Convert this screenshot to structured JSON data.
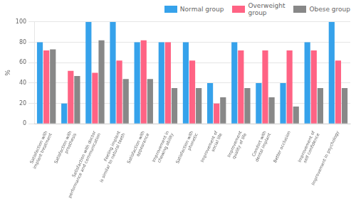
{
  "chart_data": {
    "type": "bar",
    "categories": [
      "Satisfaction with\nimplant treatment",
      "Satisfaction with\nprosthesis",
      "Satisfaction with doctor\nperformance and communication",
      "Feeling implant\nis similar to natural teeth",
      "Satisfaction with\nappearance",
      "Improvement in\nchewing ability",
      "Satisfaction with\nphonetic",
      "Improvement of\nsocial life",
      "Improvement\nquality of life",
      "Comfort with\ndental implant",
      "Better occlusion",
      "Improvement of\nself confidence",
      "Improvement in psychology"
    ],
    "series": [
      {
        "name": "Normal group",
        "color": "#36a2eb",
        "values": [
          80,
          20,
          100,
          100,
          80,
          80,
          80,
          40,
          80,
          40,
          40,
          80,
          100
        ]
      },
      {
        "name": "Overweight\ngroup",
        "color": "#ff6384",
        "values": [
          72,
          52,
          50,
          62,
          82,
          80,
          62,
          20,
          72,
          72,
          72,
          72,
          62
        ]
      },
      {
        "name": "Obese group",
        "color": "#888888",
        "values": [
          73,
          47,
          82,
          44,
          44,
          35,
          35,
          26,
          35,
          26,
          17,
          35,
          35
        ]
      }
    ],
    "ylabel": "%",
    "ylim": [
      0,
      100
    ],
    "yticks": [
      0,
      20,
      40,
      60,
      80,
      100
    ],
    "grid": true,
    "legend": "upper right"
  }
}
